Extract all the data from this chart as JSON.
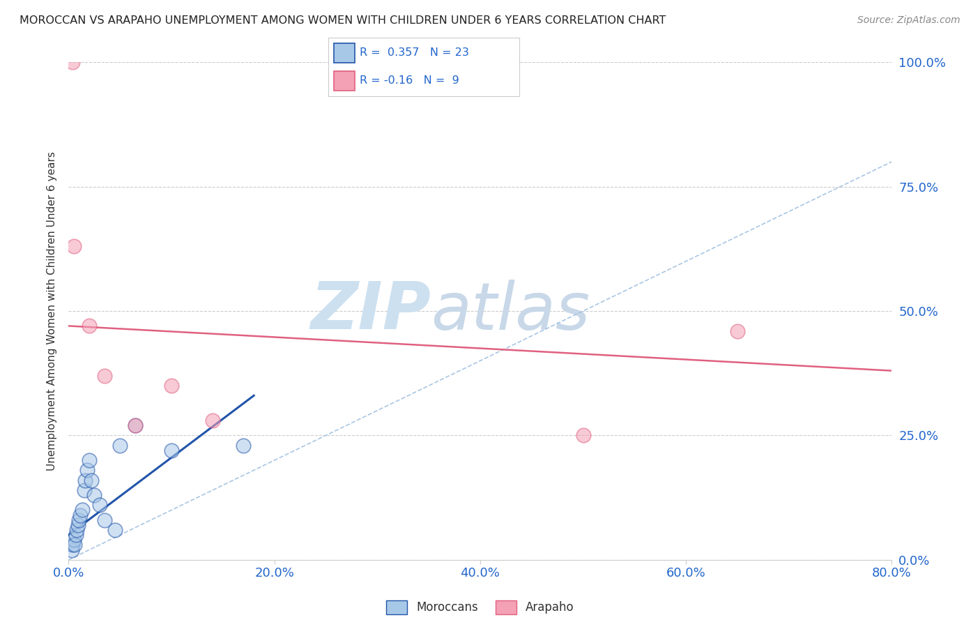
{
  "title": "MOROCCAN VS ARAPAHO UNEMPLOYMENT AMONG WOMEN WITH CHILDREN UNDER 6 YEARS CORRELATION CHART",
  "source": "Source: ZipAtlas.com",
  "xlabel_ticks": [
    "0.0%",
    "20.0%",
    "40.0%",
    "60.0%",
    "80.0%"
  ],
  "xlabel_vals": [
    0,
    20,
    40,
    60,
    80
  ],
  "ylabel_ticks": [
    "0.0%",
    "25.0%",
    "50.0%",
    "75.0%",
    "100.0%"
  ],
  "ylabel_vals": [
    0,
    25,
    50,
    75,
    100
  ],
  "ylabel_label": "Unemployment Among Women with Children Under 6 years",
  "xlim": [
    0,
    80
  ],
  "ylim": [
    0,
    100
  ],
  "blue_R": 0.357,
  "blue_N": 23,
  "pink_R": -0.16,
  "pink_N": 9,
  "blue_scatter_x": [
    0.3,
    0.4,
    0.5,
    0.6,
    0.7,
    0.8,
    0.9,
    1.0,
    1.1,
    1.3,
    1.5,
    1.6,
    1.8,
    2.0,
    2.2,
    2.5,
    3.0,
    3.5,
    4.5,
    5.0,
    6.5,
    10.0,
    17.0
  ],
  "blue_scatter_y": [
    2,
    3,
    4,
    3,
    5,
    6,
    7,
    8,
    9,
    10,
    14,
    16,
    18,
    20,
    16,
    13,
    11,
    8,
    6,
    23,
    27,
    22,
    23
  ],
  "pink_scatter_x": [
    0.4,
    0.5,
    2.0,
    3.5,
    6.5,
    10.0,
    14.0,
    50.0,
    65.0
  ],
  "pink_scatter_y": [
    100,
    63,
    47,
    37,
    27,
    35,
    28,
    25,
    46
  ],
  "blue_line_x": [
    0.0,
    18.0
  ],
  "blue_line_y": [
    5.0,
    33.0
  ],
  "pink_line_x": [
    0.0,
    80.0
  ],
  "pink_line_y": [
    47.0,
    38.0
  ],
  "diag_line_x": [
    0,
    80
  ],
  "diag_line_y": [
    0,
    80
  ],
  "blue_color": "#a8c8e8",
  "blue_line_color": "#2255aa",
  "pink_color": "#f4a0b5",
  "pink_line_color": "#e06080",
  "diag_color": "#a0c0e0",
  "legend_blue_label": "Moroccans",
  "legend_pink_label": "Arapaho",
  "watermark_zip": "ZIP",
  "watermark_atlas": "atlas",
  "watermark_color_zip": "#cce0f0",
  "watermark_color_atlas": "#c8d8e8",
  "background_color": "#ffffff",
  "title_color": "#222222",
  "title_fontsize": 11.5,
  "axis_label_color": "#333333",
  "tick_color_x": "#2266cc",
  "tick_color_y": "#2266cc",
  "source_color": "#888888",
  "grid_color": "#cccccc",
  "legend_text_color": "#2266cc"
}
